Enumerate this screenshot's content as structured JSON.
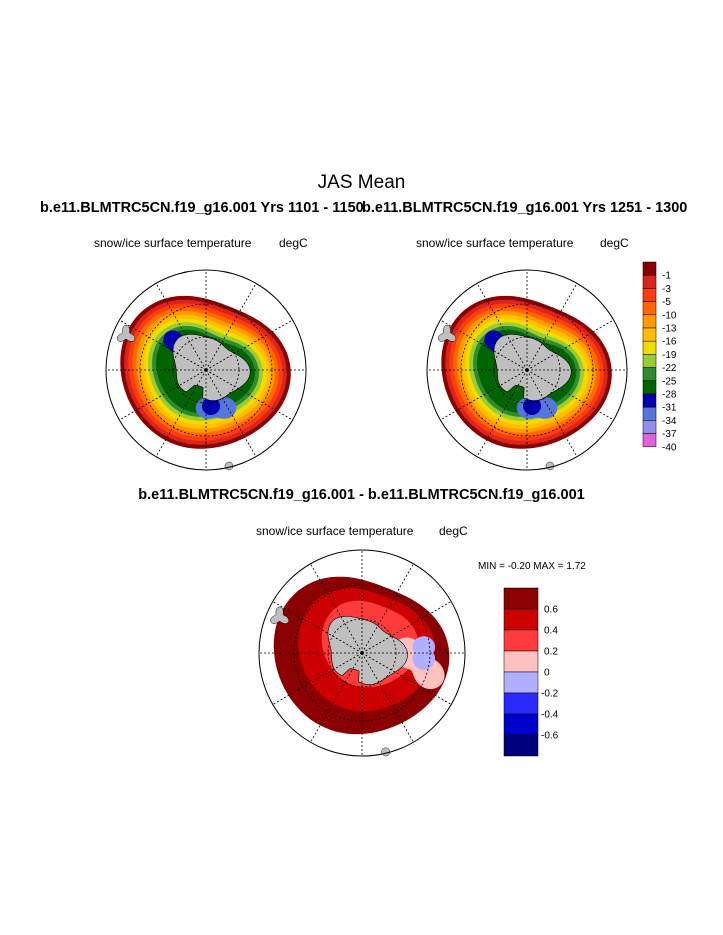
{
  "figure": {
    "title": "JAS Mean",
    "left_case": "b.e11.BLMTRC5CN.f19_g16.001  Yrs 1101 - 1150",
    "right_case": "b.e11.BLMTRC5CN.f19_g16.001  Yrs 1251 - 1300",
    "diff_title": "b.e11.BLMTRC5CN.f19_g16.001 - b.e11.BLMTRC5CN.f19_g16.001",
    "variable": "snow/ice surface temperature",
    "units": "degC",
    "min_max_text": "MIN =  -0.20 MAX =   1.72"
  },
  "chart_data": [
    {
      "type": "heatmap",
      "title": "b.e11.BLMTRC5CN.f19_g16.001  Yrs 1101 - 1150",
      "variable": "snow/ice surface temperature",
      "units": "degC",
      "projection": "south polar stereographic",
      "colorbar": {
        "labels": [
          "-1",
          "-3",
          "-5",
          "-10",
          "-13",
          "-16",
          "-19",
          "-22",
          "-25",
          "-28",
          "-31",
          "-34",
          "-37",
          "-40"
        ],
        "colors": [
          "#8b0000",
          "#d9261c",
          "#ff3b0f",
          "#ff6a00",
          "#ff9a00",
          "#ffbf00",
          "#f2dc00",
          "#9acd32",
          "#2e8b2e",
          "#006400",
          "#0000b0",
          "#5577dd",
          "#8f8fe8",
          "#e060e0"
        ]
      },
      "bands_ring_sequence_outer_to_inner": [
        "-1",
        "-3",
        "-5",
        "-10",
        "-13",
        "-16",
        "-19",
        "-22",
        "-25",
        "-28"
      ]
    },
    {
      "type": "heatmap",
      "title": "b.e11.BLMTRC5CN.f19_g16.001  Yrs 1251 - 1300",
      "variable": "snow/ice surface temperature",
      "units": "degC",
      "projection": "south polar stereographic"
    },
    {
      "type": "heatmap",
      "title": "b.e11.BLMTRC5CN.f19_g16.001 - b.e11.BLMTRC5CN.f19_g16.001",
      "variable": "snow/ice surface temperature",
      "units": "degC",
      "min": -0.2,
      "max": 1.72,
      "colorbar": {
        "labels": [
          "0.6",
          "0.4",
          "0.2",
          "0",
          "-0.2",
          "-0.4",
          "-0.6"
        ],
        "colors": [
          "#8b0000",
          "#cc0000",
          "#ff3b3b",
          "#ffc0c0",
          "#b0b0ff",
          "#2a2aff",
          "#0000cc",
          "#00007a"
        ]
      }
    }
  ],
  "map_colors": {
    "land": "#bfbfbf",
    "ocean": "#ffffff",
    "diff_dark": "#8b0000",
    "diff_mid": "#cc0000",
    "diff_light": "#ff3b3b",
    "diff_pink": "#ffc0c0",
    "diff_blue": "#b0b0ff"
  }
}
